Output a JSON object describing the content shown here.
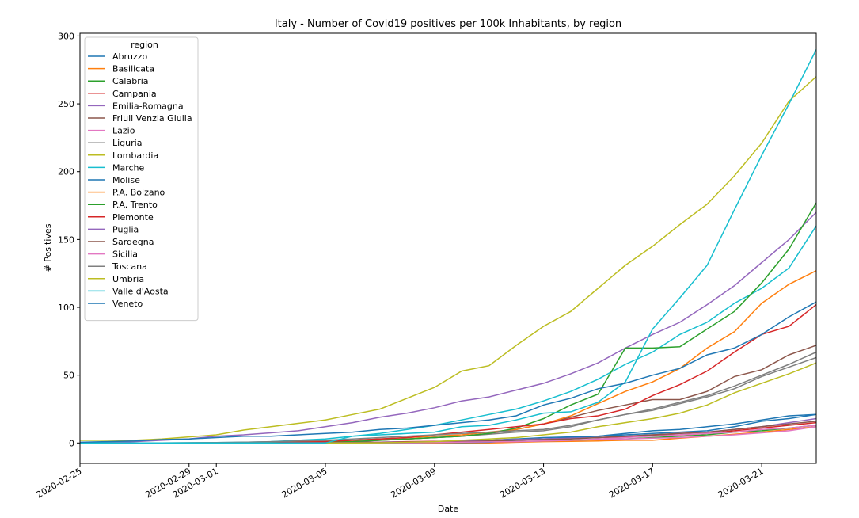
{
  "chart_data": {
    "type": "line",
    "title": "Italy - Number of Covid19 positives per 100k Inhabitants, by region",
    "xlabel": "Date",
    "ylabel": "# Positives",
    "x_tick_labels": [
      "2020-02-25",
      "2020-02-29",
      "2020-03-01",
      "2020-03-05",
      "2020-03-09",
      "2020-03-13",
      "2020-03-17",
      "2020-03-21"
    ],
    "y_ticks": [
      0,
      50,
      100,
      150,
      200,
      250,
      300
    ],
    "xlim": [
      "2020-02-25",
      "2020-03-23"
    ],
    "ylim": [
      -15,
      302
    ],
    "grid": false,
    "legend": {
      "title": "region",
      "position": "top-left"
    },
    "dates": [
      "2020-02-24",
      "2020-02-25",
      "2020-02-26",
      "2020-02-27",
      "2020-02-28",
      "2020-02-29",
      "2020-03-01",
      "2020-03-02",
      "2020-03-03",
      "2020-03-04",
      "2020-03-05",
      "2020-03-06",
      "2020-03-07",
      "2020-03-08",
      "2020-03-09",
      "2020-03-10",
      "2020-03-11",
      "2020-03-12",
      "2020-03-13",
      "2020-03-14",
      "2020-03-15",
      "2020-03-16",
      "2020-03-17",
      "2020-03-18",
      "2020-03-19",
      "2020-03-20",
      "2020-03-21",
      "2020-03-22",
      "2020-03-23"
    ],
    "series": [
      {
        "name": "Abruzzo",
        "color": "#1f77b4",
        "values": [
          0,
          0,
          0,
          0,
          0,
          0,
          0,
          0,
          0.2,
          0.3,
          0.4,
          0.5,
          0.6,
          0.8,
          1,
          1.5,
          2,
          3,
          4,
          4.5,
          5,
          6,
          7,
          8,
          9,
          12,
          16,
          18,
          21
        ]
      },
      {
        "name": "Basilicata",
        "color": "#ff7f0e",
        "values": [
          0,
          0,
          0,
          0,
          0,
          0,
          0,
          0,
          0,
          0,
          0,
          0,
          0,
          0,
          0,
          0,
          0,
          0.5,
          1,
          1.2,
          1.5,
          2,
          2,
          3.5,
          5,
          6.5,
          8,
          10,
          12
        ]
      },
      {
        "name": "Calabria",
        "color": "#2ca02c",
        "values": [
          0,
          0,
          0,
          0,
          0,
          0,
          0,
          0,
          0,
          0,
          0,
          0,
          0,
          0.2,
          0.3,
          0.5,
          0.8,
          1,
          1.5,
          2,
          2.5,
          3,
          4,
          5,
          6,
          8,
          9,
          11,
          13
        ]
      },
      {
        "name": "Campania",
        "color": "#d62728",
        "values": [
          0,
          0,
          0,
          0,
          0,
          0,
          0,
          0,
          0.1,
          0.2,
          0.3,
          0.4,
          0.6,
          1,
          1.2,
          1.5,
          2,
          2.5,
          3,
          3.5,
          4,
          4.5,
          5.5,
          6,
          7,
          9,
          11,
          13,
          15
        ]
      },
      {
        "name": "Emilia-Romagna",
        "color": "#9467bd",
        "values": [
          0,
          0,
          0.5,
          1,
          2,
          3,
          5,
          6,
          7.5,
          9,
          12,
          15,
          19,
          22,
          26,
          31,
          34,
          39,
          44,
          51,
          59,
          70,
          80,
          89,
          102,
          116,
          133,
          150,
          170
        ]
      },
      {
        "name": "Friuli Venzia Giulia",
        "color": "#8c564b",
        "values": [
          0,
          0,
          0,
          0,
          0,
          0,
          0,
          0.5,
          0.6,
          0.7,
          0.8,
          1,
          2,
          3,
          4,
          5,
          7,
          10,
          14,
          19,
          24,
          28,
          32,
          32,
          38,
          49,
          54,
          65,
          72
        ]
      },
      {
        "name": "Lazio",
        "color": "#e377c2",
        "values": [
          0,
          0,
          0,
          0,
          0,
          0,
          0,
          0,
          0,
          0,
          0,
          0,
          0.1,
          0.2,
          0.3,
          0.5,
          0.8,
          1,
          1.5,
          2,
          3,
          4,
          5,
          6,
          7,
          8,
          10,
          11,
          13
        ]
      },
      {
        "name": "Liguria",
        "color": "#7f7f7f",
        "values": [
          0,
          0,
          0,
          0,
          0,
          0,
          0,
          0.2,
          0.5,
          1,
          1.5,
          2,
          2.5,
          3,
          4,
          5,
          6.5,
          8,
          9,
          12,
          17,
          21,
          24,
          29,
          34,
          40,
          49,
          56,
          63
        ]
      },
      {
        "name": "Lombardia",
        "color": "#bcbd22",
        "values": [
          1.5,
          2,
          2,
          2,
          3,
          4.5,
          6,
          9.5,
          12,
          14.5,
          17,
          21,
          25,
          33,
          41,
          53,
          57,
          72,
          86,
          97,
          114,
          131,
          145,
          161,
          176,
          197,
          221,
          252,
          270
        ]
      },
      {
        "name": "Marche",
        "color": "#17becf",
        "values": [
          0,
          0,
          0,
          0,
          0,
          0.2,
          0.3,
          0.5,
          1,
          2,
          3,
          5,
          7,
          10,
          13,
          17,
          21,
          25,
          31,
          38,
          47,
          58,
          67,
          80,
          89,
          103,
          114,
          129,
          160
        ]
      },
      {
        "name": "Molise",
        "color": "#1f77b4",
        "values": [
          0,
          0,
          0,
          0,
          0,
          0,
          0,
          0,
          0,
          0,
          0,
          0,
          0,
          0.2,
          0.3,
          0.3,
          0.5,
          2,
          3,
          4,
          5,
          7,
          9,
          10,
          12,
          14,
          17,
          20,
          21
        ]
      },
      {
        "name": "P.A. Bolzano",
        "color": "#ff7f0e",
        "values": [
          0,
          0,
          0,
          0,
          0,
          0,
          0,
          0,
          0,
          0.5,
          1,
          2,
          3,
          4,
          5,
          6,
          8,
          10,
          14,
          20,
          29,
          38,
          45,
          55,
          70,
          82,
          103,
          117,
          127
        ]
      },
      {
        "name": "P.A. Trento",
        "color": "#2ca02c",
        "values": [
          0,
          0,
          0,
          0,
          0,
          0,
          0,
          0,
          0.2,
          0.4,
          0.6,
          1,
          2,
          3,
          4,
          5,
          7,
          11,
          18,
          28,
          36,
          70,
          70,
          71,
          84,
          97,
          118,
          143,
          177
        ]
      },
      {
        "name": "Piemonte",
        "color": "#d62728",
        "values": [
          0,
          0,
          0,
          0,
          0,
          0,
          0,
          0.1,
          0.2,
          0.5,
          1,
          2,
          3,
          4,
          6,
          8,
          10,
          12,
          14,
          18,
          20,
          25,
          35,
          43,
          53,
          67,
          80,
          86,
          102
        ]
      },
      {
        "name": "Puglia",
        "color": "#9467bd",
        "values": [
          0,
          0,
          0,
          0,
          0,
          0,
          0,
          0,
          0,
          0.1,
          0.2,
          0.3,
          0.5,
          0.7,
          1,
          1.5,
          2,
          2.5,
          3,
          3.5,
          4,
          5,
          6,
          7,
          8,
          10,
          12,
          15,
          18
        ]
      },
      {
        "name": "Sardegna",
        "color": "#8c564b",
        "values": [
          0,
          0,
          0,
          0,
          0,
          0,
          0,
          0,
          0,
          0,
          0.1,
          0.2,
          0.3,
          0.5,
          0.8,
          1,
          1.5,
          2,
          2.5,
          3,
          4,
          5,
          6,
          7,
          8,
          10,
          12,
          14,
          16
        ]
      },
      {
        "name": "Sicilia",
        "color": "#e377c2",
        "values": [
          0,
          0,
          0,
          0,
          0,
          0,
          0,
          0,
          0,
          0,
          0,
          0,
          0.1,
          0.2,
          0.4,
          0.6,
          0.8,
          1,
          1.5,
          2,
          2.5,
          3,
          3.5,
          4,
          5,
          6,
          7.5,
          9,
          12
        ]
      },
      {
        "name": "Toscana",
        "color": "#7f7f7f",
        "values": [
          0,
          0,
          0,
          0,
          0,
          0.2,
          0.3,
          0.5,
          1,
          1.5,
          2,
          3,
          4,
          5,
          6,
          7,
          8,
          9,
          10,
          13,
          17,
          21,
          25,
          30,
          35,
          42,
          50,
          58,
          67
        ]
      },
      {
        "name": "Umbria",
        "color": "#bcbd22",
        "values": [
          0,
          0,
          0,
          0,
          0,
          0,
          0,
          0,
          0,
          0,
          0,
          0,
          0.1,
          0.5,
          1,
          2,
          3,
          4,
          6,
          8,
          12,
          15,
          18,
          22,
          28,
          37,
          44,
          51,
          59
        ]
      },
      {
        "name": "Valle d'Aosta",
        "color": "#17becf",
        "values": [
          0,
          0,
          0,
          0,
          0,
          0,
          0,
          0,
          0,
          0,
          0,
          5,
          6,
          7,
          8,
          12,
          13,
          17,
          22,
          23,
          30,
          45,
          84,
          107,
          131,
          172,
          212,
          250,
          290
        ]
      },
      {
        "name": "Veneto",
        "color": "#1f77b4",
        "values": [
          0,
          0.5,
          1,
          1.5,
          2.5,
          3,
          4,
          5,
          5,
          6,
          7,
          8,
          10,
          11,
          13,
          15,
          17,
          20,
          28,
          33,
          40,
          44,
          50,
          55,
          65,
          70,
          80,
          93,
          104
        ]
      }
    ]
  }
}
